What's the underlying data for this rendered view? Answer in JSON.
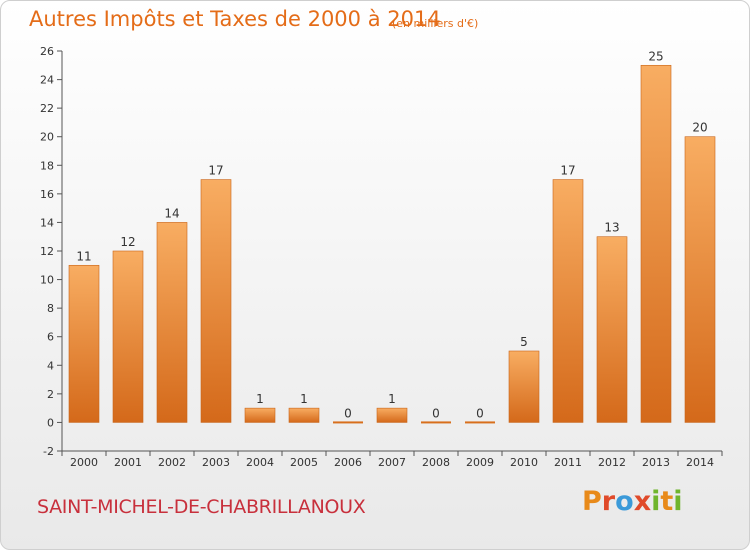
{
  "header": {
    "title": "Autres Impôts et Taxes de 2000 à 2014",
    "subtitle": "(en milliers d'€)"
  },
  "footer": {
    "commune": "SAINT-MICHEL-DE-CHABRILLANOUX",
    "logo_letters": [
      "P",
      "r",
      "o",
      "x",
      "i",
      "t",
      "i"
    ]
  },
  "colors": {
    "bar_light": "#f7a85a",
    "bar_dark": "#d86f1c",
    "title": "#e46c18",
    "commune": "#c8303c"
  },
  "chart_data": {
    "type": "bar",
    "title": "Autres Impôts et Taxes de 2000 à 2014",
    "subtitle": "(en milliers d'€)",
    "xlabel": "",
    "ylabel": "",
    "categories": [
      "2000",
      "2001",
      "2002",
      "2003",
      "2004",
      "2005",
      "2006",
      "2007",
      "2008",
      "2009",
      "2010",
      "2011",
      "2012",
      "2013",
      "2014"
    ],
    "values": [
      11,
      12,
      14,
      17,
      1,
      1,
      0,
      1,
      0,
      0,
      5,
      17,
      13,
      25,
      20
    ],
    "ylim": [
      -2,
      26
    ],
    "yticks": [
      -2,
      0,
      2,
      4,
      6,
      8,
      10,
      12,
      14,
      16,
      18,
      20,
      22,
      24,
      26
    ],
    "grid": false,
    "data_labels": true
  }
}
